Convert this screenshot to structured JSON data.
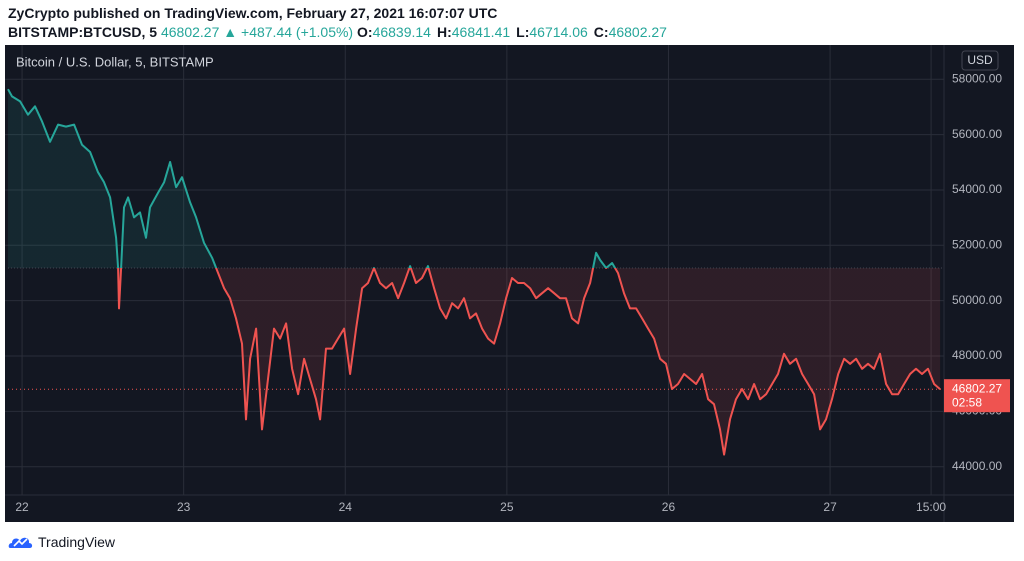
{
  "header": {
    "byline": "ZyCrypto published on TradingView.com, February 27, 2021 16:07:07 UTC",
    "symbol": "BITSTAMP:BTCUSD, 5",
    "price": "46802.27",
    "arrow": "▲",
    "change": "+487.44 (+1.05%)",
    "ohlc": [
      {
        "label": "O:",
        "value": "46839.14"
      },
      {
        "label": "H:",
        "value": "46841.41"
      },
      {
        "label": "L:",
        "value": "46714.06"
      },
      {
        "label": "C:",
        "value": "46802.27"
      }
    ]
  },
  "chart_data": {
    "type": "line",
    "title": "Bitcoin / U.S. Dollar, 5, BITSTAMP",
    "currency": "USD",
    "colors": {
      "above": "#26a69a",
      "below": "#ef5350"
    },
    "baseline": 51180,
    "x": [
      21.913,
      21.938,
      21.988,
      22.037,
      22.08,
      22.124,
      22.173,
      22.223,
      22.272,
      22.322,
      22.371,
      22.421,
      22.47,
      22.507,
      22.545,
      22.582,
      22.594,
      22.6,
      22.613,
      22.631,
      22.656,
      22.693,
      22.73,
      22.767,
      22.792,
      22.842,
      22.879,
      22.916,
      22.953,
      22.99,
      23.04,
      23.077,
      23.126,
      23.176,
      23.213,
      23.25,
      23.287,
      23.324,
      23.361,
      23.386,
      23.411,
      23.448,
      23.485,
      23.522,
      23.559,
      23.597,
      23.634,
      23.671,
      23.708,
      23.745,
      23.782,
      23.819,
      23.844,
      23.881,
      23.918,
      23.955,
      23.993,
      24.03,
      24.067,
      24.104,
      24.141,
      24.178,
      24.215,
      24.252,
      24.29,
      24.327,
      24.364,
      24.401,
      24.438,
      24.475,
      24.512,
      24.55,
      24.587,
      24.624,
      24.661,
      24.698,
      24.735,
      24.772,
      24.809,
      24.847,
      24.884,
      24.921,
      24.958,
      24.995,
      25.032,
      25.069,
      25.106,
      25.144,
      25.181,
      25.218,
      25.255,
      25.292,
      25.329,
      25.366,
      25.403,
      25.441,
      25.478,
      25.515,
      25.552,
      25.577,
      25.614,
      25.651,
      25.688,
      25.725,
      25.762,
      25.8,
      25.837,
      25.874,
      25.911,
      25.948,
      25.985,
      26.022,
      26.059,
      26.097,
      26.134,
      26.171,
      26.208,
      26.245,
      26.282,
      26.319,
      26.344,
      26.381,
      26.418,
      26.455,
      26.493,
      26.53,
      26.567,
      26.604,
      26.641,
      26.678,
      26.715,
      26.752,
      26.79,
      26.827,
      26.864,
      26.901,
      26.938,
      26.975,
      27.012,
      27.05,
      27.087,
      27.124,
      27.161,
      27.198,
      27.235,
      27.272,
      27.309,
      27.347,
      27.384,
      27.421,
      27.458,
      27.495,
      27.532,
      27.569,
      27.606,
      27.644,
      27.681
    ],
    "values": [
      57640,
      57380,
      57200,
      56720,
      57020,
      56470,
      55740,
      56360,
      56290,
      56360,
      55630,
      55370,
      54640,
      54280,
      53730,
      52270,
      51180,
      49720,
      51180,
      53370,
      53730,
      53010,
      53190,
      52270,
      53370,
      53900,
      54280,
      55010,
      54100,
      54460,
      53550,
      53010,
      52090,
      51550,
      51000,
      50450,
      50090,
      49360,
      48450,
      45710,
      47900,
      48990,
      45350,
      47170,
      48990,
      48630,
      49180,
      47540,
      46620,
      47900,
      47170,
      46440,
      45710,
      48270,
      48270,
      48630,
      48990,
      47350,
      48990,
      50450,
      50640,
      51180,
      50640,
      50450,
      50640,
      50090,
      50640,
      51250,
      50640,
      50820,
      51250,
      50450,
      49720,
      49360,
      49910,
      49720,
      50090,
      49360,
      49540,
      48990,
      48630,
      48450,
      49180,
      50090,
      50820,
      50640,
      50640,
      50450,
      50090,
      50270,
      50450,
      50270,
      50090,
      50090,
      49360,
      49180,
      50090,
      50640,
      51730,
      51470,
      51180,
      51360,
      51000,
      50270,
      49720,
      49720,
      49360,
      48990,
      48630,
      47900,
      47720,
      46810,
      46990,
      47350,
      47170,
      46990,
      47350,
      46440,
      46260,
      45350,
      44440,
      45710,
      46440,
      46810,
      46440,
      46990,
      46440,
      46620,
      46990,
      47350,
      48080,
      47720,
      47900,
      47350,
      46990,
      46620,
      45350,
      45710,
      46440,
      47350,
      47900,
      47720,
      47900,
      47540,
      47720,
      47540,
      48080,
      46990,
      46620,
      46620,
      46990,
      47350,
      47540,
      47350,
      47540,
      46990,
      46802.27
    ],
    "xlim": [
      21.913,
      27.705
    ],
    "xticks": [
      22,
      23,
      24,
      25,
      26,
      27,
      {
        "value": 27.625,
        "label": "15:00"
      }
    ],
    "ylim": [
      42980,
      59200
    ],
    "yticks": [
      {
        "value": 44000,
        "label": "44000.00"
      },
      {
        "value": 46000,
        "label": "46000.00"
      },
      {
        "value": 48000,
        "label": "48000.00"
      },
      {
        "value": 50000,
        "label": "50000.00"
      },
      {
        "value": 52000,
        "label": "52000.00"
      },
      {
        "value": 54000,
        "label": "54000.00"
      },
      {
        "value": 56000,
        "label": "56000.00"
      },
      {
        "value": 58000,
        "label": "58000.00"
      }
    ],
    "grid": true,
    "last_price": {
      "value": 46802.27,
      "countdown": "02:58"
    }
  },
  "footer": {
    "brand": "TradingView"
  }
}
